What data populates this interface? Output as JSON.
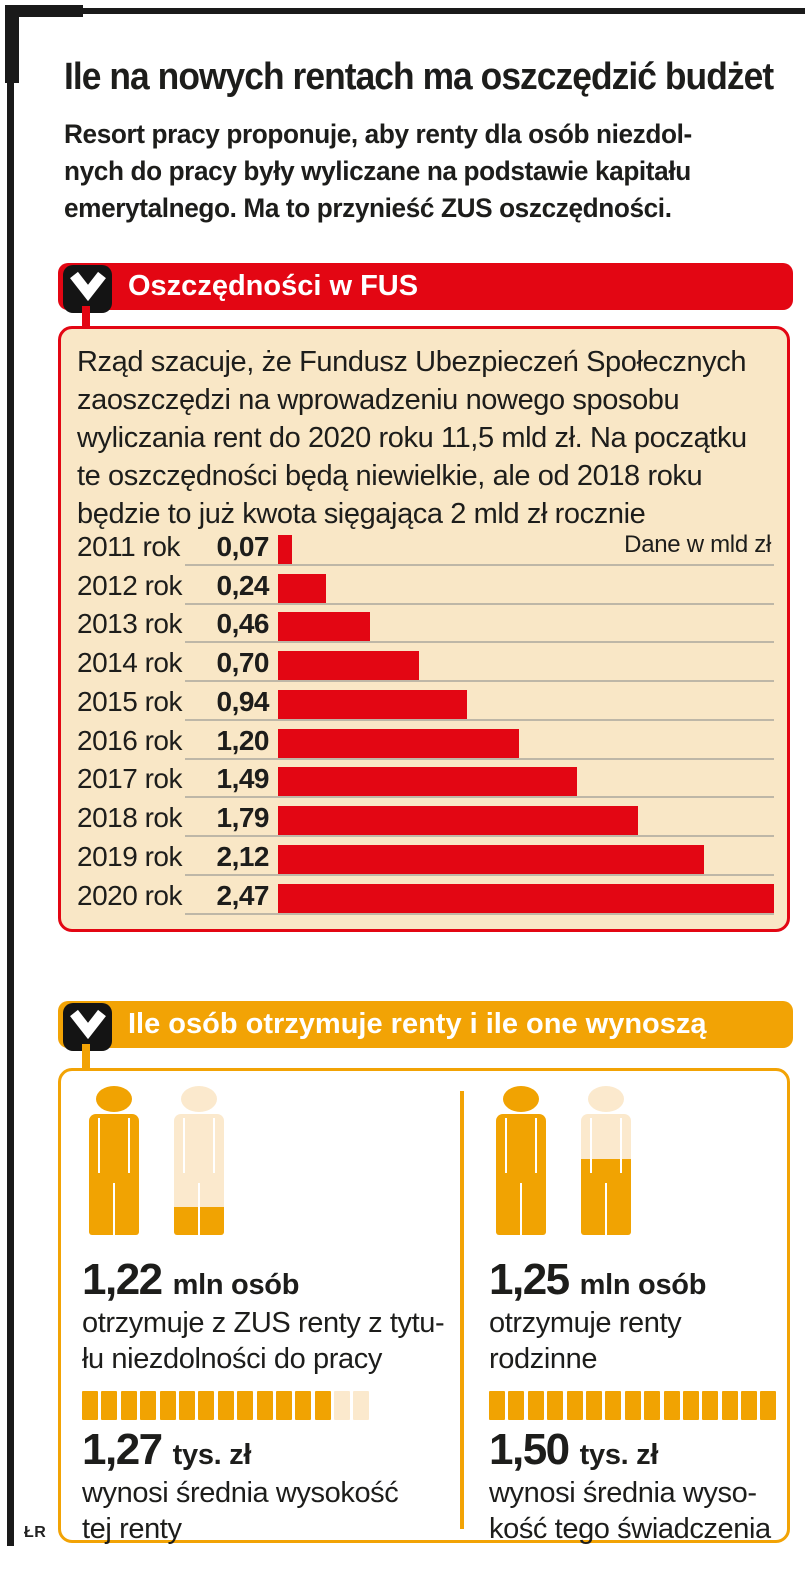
{
  "header": {
    "title": "Ile na nowych rentach ma oszczędzić budżet",
    "intro_lines": [
      "Resort pracy proponuje, aby renty dla osób niezdol-",
      "nych do pracy były wyliczane na podstawie kapitału",
      "emerytalnego. Ma to przynieść ZUS oszczędności."
    ]
  },
  "section1": {
    "label": "Oszczędności w FUS",
    "box_text_lines": [
      "Rząd szacuje, że Fundusz Ubezpieczeń Społecznych",
      "zaoszczędzi na wprowadzeniu nowego sposobu",
      "wyliczania rent do 2020 roku 11,5 mld zł. Na początku",
      "te oszczędności będą niewielkie, ale od 2018 roku",
      "będzie to już kwota sięgająca 2 mld zł rocznie"
    ],
    "chart_data": {
      "type": "bar",
      "orientation": "horizontal",
      "title": "Oszczędności w FUS",
      "unit_note": "Dane w mld zł",
      "categories": [
        "2011 rok",
        "2012 rok",
        "2013 rok",
        "2014 rok",
        "2015 rok",
        "2016 rok",
        "2017 rok",
        "2018 rok",
        "2019 rok",
        "2020 rok"
      ],
      "values": [
        0.07,
        0.24,
        0.46,
        0.7,
        0.94,
        1.2,
        1.49,
        1.79,
        2.12,
        2.47
      ],
      "value_labels": [
        "0,07",
        "0,24",
        "0,46",
        "0,70",
        "0,94",
        "1,20",
        "1,49",
        "1,79",
        "2,12",
        "2,47"
      ],
      "xlim": [
        0,
        2.47
      ],
      "bar_color": "#e30613",
      "grid": true
    }
  },
  "section2": {
    "label": "Ile osób otrzymuje renty i ile one wynoszą",
    "columns": [
      {
        "count_value": "1,22",
        "count_unit": "mln osób",
        "count_desc_lines": [
          "otrzymuje z ZUS renty z tytu-",
          "łu niezdolności do pracy"
        ],
        "person_fill_percent": 20,
        "squares_total": 15,
        "squares_filled": 13,
        "amount_value": "1,27",
        "amount_unit": "tys. zł",
        "amount_desc_lines": [
          "wynosi średnia wysokość",
          "tej renty"
        ]
      },
      {
        "count_value": "1,25",
        "count_unit": "mln osób",
        "count_desc_lines": [
          "otrzymuje renty",
          "rodzinne"
        ],
        "person_fill_percent": 51,
        "squares_total": 15,
        "squares_filled": 15,
        "amount_value": "1,50",
        "amount_unit": "tys. zł",
        "amount_desc_lines": [
          "wynosi średnia wyso-",
          "kość tego świadczenia"
        ]
      }
    ]
  },
  "footer": {
    "credit": "ŁR"
  },
  "colors": {
    "red": "#e30613",
    "orange": "#f2a305",
    "figure_orange": "#f1a302",
    "pale": "#fbe9cd",
    "cream": "#f9e7c6",
    "grid": "#beb7a7",
    "text": "#1d1d1b"
  }
}
